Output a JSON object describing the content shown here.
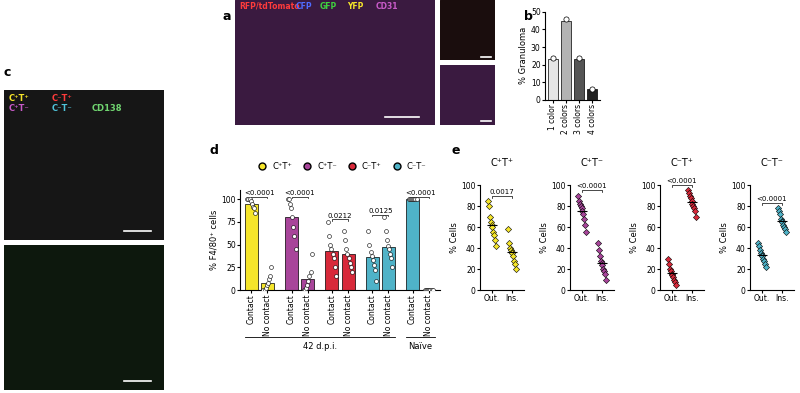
{
  "panel_labels": [
    "a",
    "b",
    "c",
    "d",
    "e"
  ],
  "images": [
    {
      "channels": [
        {
          "name": "RFP/tdTomato",
          "color": "#ff3b3b"
        },
        {
          "name": "CFP",
          "color": "#4f6bff"
        },
        {
          "name": "GFP",
          "color": "#3fd13f"
        },
        {
          "name": "YFP",
          "color": "#f5e52a"
        },
        {
          "name": "CD31",
          "color": "#c85ac8"
        }
      ]
    },
    {
      "channels": [
        {
          "name": "C⁺T⁺",
          "color": "#f5e52a"
        },
        {
          "name": "C⁻T⁺",
          "color": "#ff3b3b"
        },
        {
          "name": "C⁺T⁻",
          "color": "#c85ac8"
        },
        {
          "name": "C⁻T⁻",
          "color": "#4fc3d9"
        },
        {
          "name": "CD138",
          "color": "#6fd36f"
        }
      ]
    }
  ],
  "chart_data": [
    {
      "type": "bar",
      "ylabel": "% Granuloma",
      "categories": [
        "1 color",
        "2 colors",
        "3 colors",
        "4 colors"
      ],
      "values": [
        23,
        45,
        23,
        6
      ],
      "points": [
        24,
        46,
        24,
        6
      ],
      "colors": [
        "#e6e6e6",
        "#b3b3b3",
        "#555555",
        "#222222"
      ],
      "ylim": [
        0,
        50
      ],
      "yticks": [
        0,
        10,
        20,
        30,
        40,
        50
      ]
    },
    {
      "type": "bar",
      "ylabel": "% F4/80⁺ cells",
      "categories": [
        "Contact",
        "No contact"
      ],
      "groups": [
        {
          "name": "C⁺T⁺",
          "color": "#f5e52a",
          "values": [
            95,
            8
          ],
          "p_value": "<0.0001",
          "points": [
            [
              100,
              100,
              100,
              98,
              95,
              92,
              90,
              85
            ],
            [
              0,
              0,
              2,
              5,
              8,
              12,
              15,
              25
            ]
          ]
        },
        {
          "name": "C⁺T⁻",
          "color": "#a8459a",
          "values": [
            80,
            12
          ],
          "p_value": "<0.0001",
          "points": [
            [
              100,
              100,
              95,
              90,
              80,
              70,
              60,
              45
            ],
            [
              0,
              0,
              2,
              5,
              10,
              15,
              20,
              40
            ]
          ]
        },
        {
          "name": "C⁻T⁺",
          "color": "#d8293a",
          "values": [
            43,
            40
          ],
          "p_value": "0.0212",
          "points": [
            [
              75,
              60,
              50,
              45,
              40,
              35,
              25,
              15
            ],
            [
              65,
              55,
              45,
              40,
              35,
              30,
              25,
              20
            ]
          ]
        },
        {
          "name": "C⁻T⁻",
          "color": "#4fb3c8",
          "values": [
            36,
            47
          ],
          "p_value": "0.0125",
          "points": [
            [
              65,
              50,
              42,
              38,
              33,
              28,
              22,
              10
            ],
            [
              80,
              65,
              55,
              48,
              45,
              40,
              35,
              25
            ]
          ]
        },
        {
          "color": "#4fb3c8",
          "values": [
            100,
            0
          ],
          "p_value": "<0.0001",
          "points": [
            [
              100,
              100,
              100,
              100,
              100,
              100,
              100,
              100
            ],
            [
              0,
              0,
              0,
              0,
              0,
              0,
              0,
              0
            ]
          ]
        }
      ],
      "group_labels": [
        {
          "label": "42 d.p.i.",
          "groups": [
            0,
            1,
            2,
            3
          ]
        },
        {
          "label": "Naïve",
          "groups": [
            4
          ]
        }
      ],
      "ylim": [
        0,
        110
      ],
      "yticks": [
        0,
        25,
        50,
        75,
        100
      ],
      "legend": "lower center"
    },
    {
      "type": "scatter",
      "title": "C⁺T⁺",
      "ylabel": "% Cells",
      "categories": [
        "Out.",
        "Ins."
      ],
      "color": "#f5e52a",
      "marker": "diamond",
      "values": [
        62,
        36
      ],
      "p_value": "0.0017",
      "points": [
        [
          85,
          80,
          70,
          65,
          62,
          60,
          55,
          52,
          48,
          42
        ],
        [
          58,
          45,
          40,
          38,
          36,
          35,
          32,
          28,
          25,
          20
        ]
      ],
      "ylim": [
        0,
        100
      ],
      "yticks": [
        0,
        20,
        40,
        60,
        80,
        100
      ]
    },
    {
      "type": "scatter",
      "title": "C⁺T⁻",
      "ylabel": "% Cells",
      "categories": [
        "Out.",
        "Ins."
      ],
      "color": "#a8459a",
      "marker": "diamond",
      "values": [
        75,
        26
      ],
      "p_value": "<0.0001",
      "points": [
        [
          90,
          85,
          82,
          80,
          78,
          75,
          72,
          68,
          62,
          55
        ],
        [
          45,
          38,
          32,
          28,
          26,
          24,
          20,
          18,
          15,
          10
        ]
      ],
      "ylim": [
        0,
        100
      ],
      "yticks": [
        0,
        20,
        40,
        60,
        80,
        100
      ]
    },
    {
      "type": "scatter",
      "title": "C⁻T⁺",
      "ylabel": "% Cells",
      "categories": [
        "Out.",
        "Ins."
      ],
      "color": "#d8293a",
      "marker": "diamond",
      "values": [
        16,
        84
      ],
      "p_value": "<0.0001",
      "points": [
        [
          30,
          25,
          20,
          18,
          15,
          14,
          12,
          10,
          8,
          5
        ],
        [
          95,
          92,
          90,
          88,
          85,
          82,
          80,
          78,
          75,
          70
        ]
      ],
      "ylim": [
        0,
        100
      ],
      "yticks": [
        0,
        20,
        40,
        60,
        80,
        100
      ]
    },
    {
      "type": "scatter",
      "title": "C⁻T⁻",
      "ylabel": "% Cells",
      "categories": [
        "Out.",
        "Ins."
      ],
      "color": "#4fb3c8",
      "marker": "diamond",
      "values": [
        33,
        66
      ],
      "p_value": "<0.0001",
      "points": [
        [
          45,
          42,
          38,
          35,
          33,
          32,
          30,
          28,
          25,
          22
        ],
        [
          78,
          75,
          72,
          68,
          66,
          65,
          62,
          60,
          58,
          55
        ]
      ],
      "ylim": [
        0,
        100
      ],
      "yticks": [
        0,
        20,
        40,
        60,
        80,
        100
      ]
    }
  ]
}
